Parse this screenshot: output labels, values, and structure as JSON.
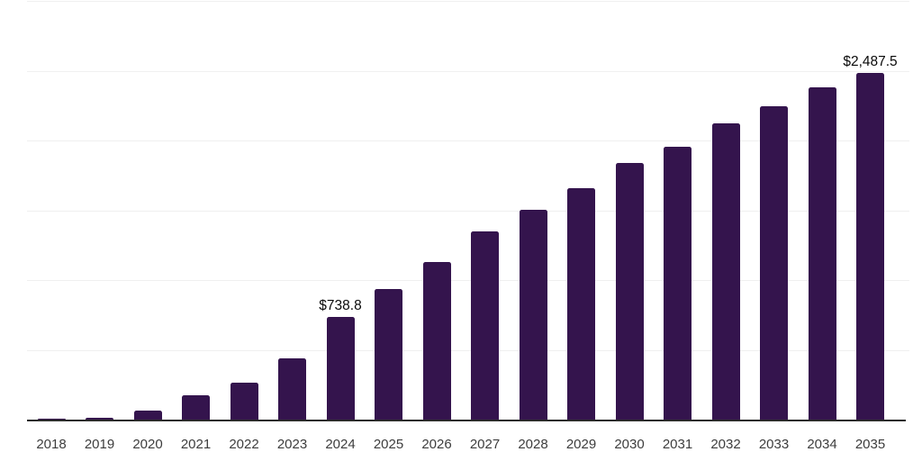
{
  "chart_data": {
    "type": "bar",
    "title": "",
    "xlabel": "",
    "ylabel": "",
    "categories": [
      "2018",
      "2019",
      "2020",
      "2021",
      "2022",
      "2023",
      "2024",
      "2025",
      "2026",
      "2027",
      "2028",
      "2029",
      "2030",
      "2031",
      "2032",
      "2033",
      "2034",
      "2035"
    ],
    "values": [
      7,
      15,
      70,
      175,
      266,
      444,
      738.8,
      939,
      1133,
      1350,
      1502,
      1659,
      1841,
      1959,
      2121,
      2248,
      2381,
      2487.5
    ],
    "labeled_points": [
      {
        "category": "2024",
        "label": "$738.8"
      },
      {
        "category": "2035",
        "label": "$2,487.5"
      }
    ],
    "ylim": [
      0,
      3000
    ],
    "gridline_step": 500,
    "y_tick_labels_visible": false,
    "grid": "horizontal",
    "legend": "none",
    "colors": {
      "bar": "#34144d",
      "axis_line": "#2b2b2b",
      "gridline": "#f0f0f0",
      "tick_label": "#3d3d3d",
      "value_label": "#0a0a0a",
      "background": "#ffffff"
    }
  }
}
